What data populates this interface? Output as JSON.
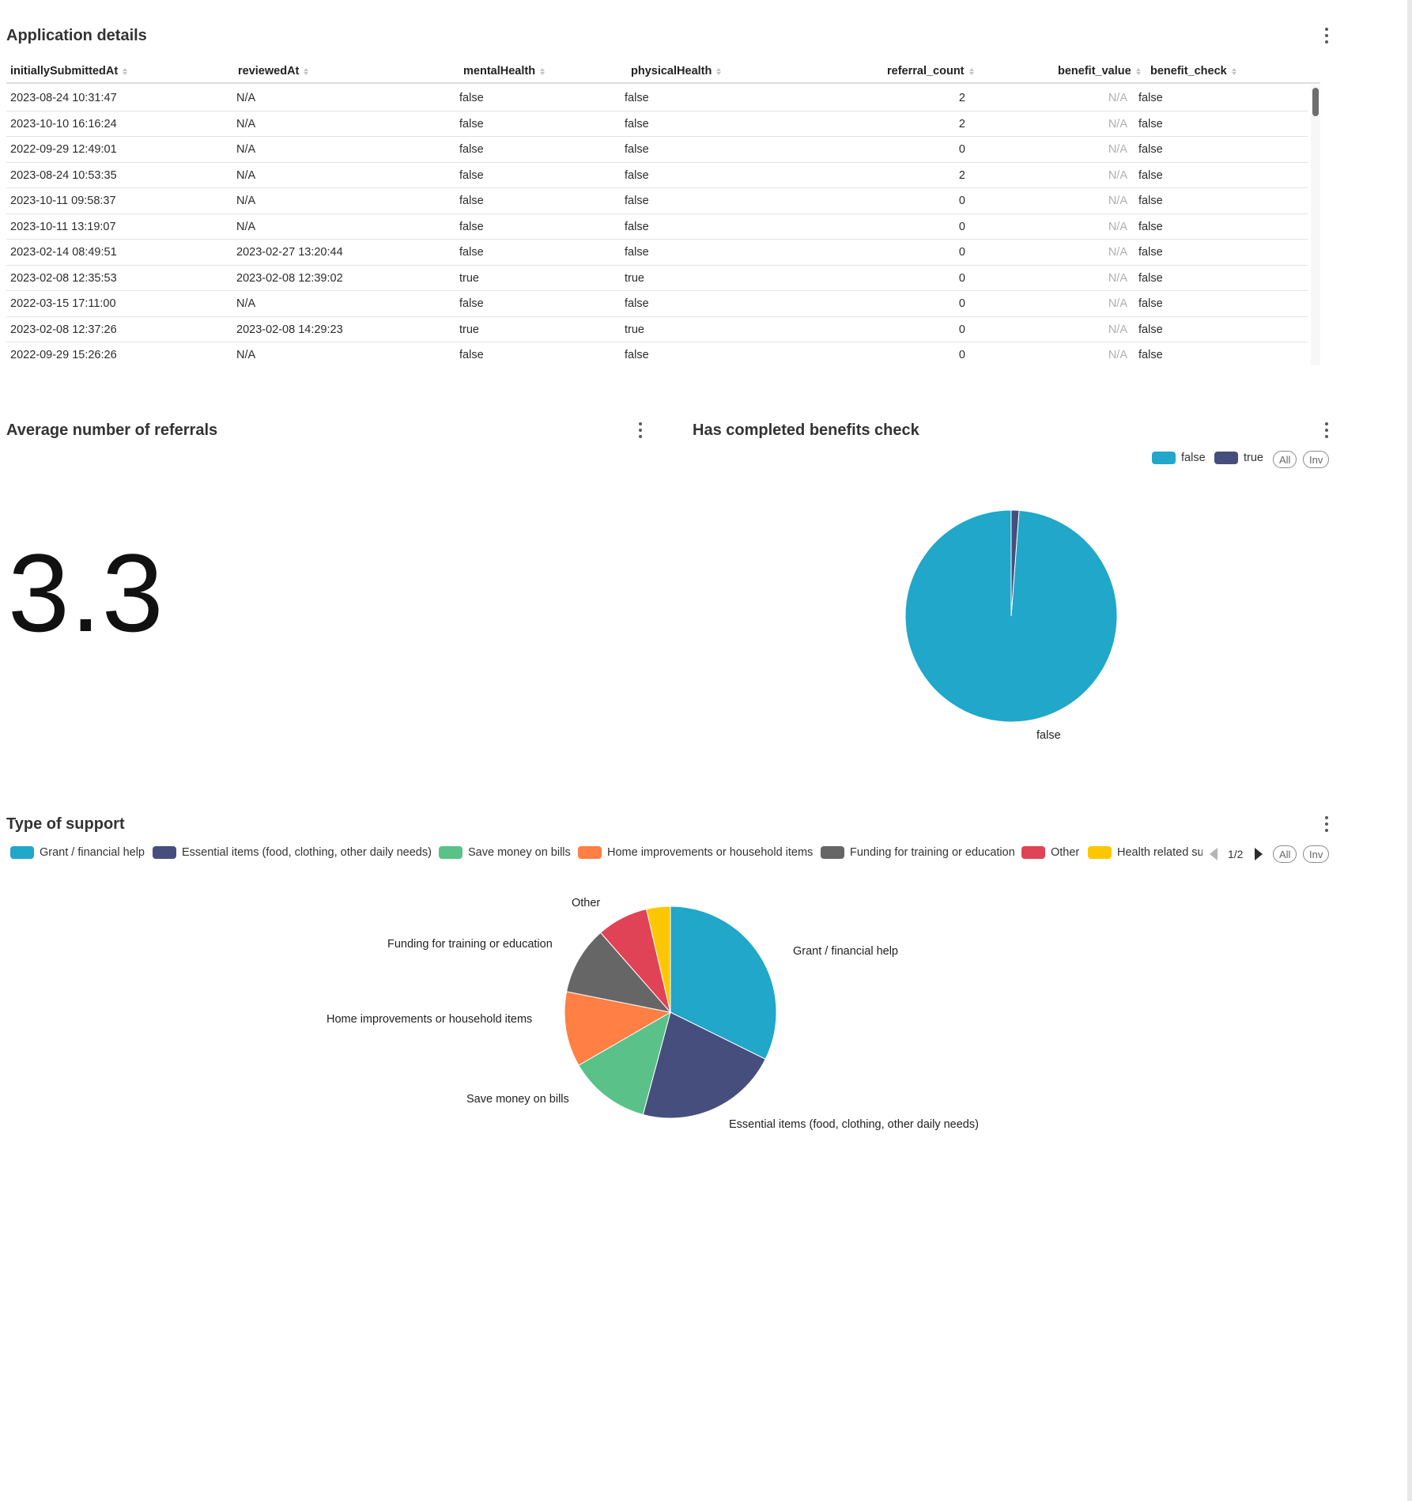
{
  "app_details": {
    "title": "Application details",
    "columns": [
      "initiallySubmittedAt",
      "reviewedAt",
      "mentalHealth",
      "physicalHealth",
      "referral_count",
      "benefit_value",
      "benefit_check"
    ],
    "rows": [
      [
        "2023-08-24 10:31:47",
        "N/A",
        "false",
        "false",
        "2",
        "N/A",
        "false"
      ],
      [
        "2023-10-10 16:16:24",
        "N/A",
        "false",
        "false",
        "2",
        "N/A",
        "false"
      ],
      [
        "2022-09-29 12:49:01",
        "N/A",
        "false",
        "false",
        "0",
        "N/A",
        "false"
      ],
      [
        "2023-08-24 10:53:35",
        "N/A",
        "false",
        "false",
        "2",
        "N/A",
        "false"
      ],
      [
        "2023-10-11 09:58:37",
        "N/A",
        "false",
        "false",
        "0",
        "N/A",
        "false"
      ],
      [
        "2023-10-11 13:19:07",
        "N/A",
        "false",
        "false",
        "0",
        "N/A",
        "false"
      ],
      [
        "2023-02-14 08:49:51",
        "2023-02-27 13:20:44",
        "false",
        "false",
        "0",
        "N/A",
        "false"
      ],
      [
        "2023-02-08 12:35:53",
        "2023-02-08 12:39:02",
        "true",
        "true",
        "0",
        "N/A",
        "false"
      ],
      [
        "2022-03-15 17:11:00",
        "N/A",
        "false",
        "false",
        "0",
        "N/A",
        "false"
      ],
      [
        "2023-02-08 12:37:26",
        "2023-02-08 14:29:23",
        "true",
        "true",
        "0",
        "N/A",
        "false"
      ],
      [
        "2022-09-29 15:26:26",
        "N/A",
        "false",
        "false",
        "0",
        "N/A",
        "false"
      ]
    ]
  },
  "avg_referrals": {
    "title": "Average number of referrals",
    "value": "3.3"
  },
  "benefits_check": {
    "title": "Has completed benefits check",
    "legend_all": "All",
    "legend_inv": "Inv",
    "slice_label": "false"
  },
  "type_support": {
    "title": "Type of support",
    "legend_truncated_last": "Health related su",
    "pager": "1/2",
    "legend_all": "All",
    "legend_inv": "Inv"
  },
  "chart_data": [
    {
      "type": "pie",
      "title": "Has completed benefits check",
      "legend_position": "top-right",
      "slices": [
        {
          "name": "false",
          "value": 98.8,
          "color": "#20A7C9"
        },
        {
          "name": "true",
          "value": 1.2,
          "color": "#454E7C"
        }
      ]
    },
    {
      "type": "pie",
      "title": "Type of support",
      "legend_position": "top",
      "slices": [
        {
          "name": "Grant / financial help",
          "value": 31,
          "color": "#20A7C9"
        },
        {
          "name": "Essential items (food, clothing, other daily needs)",
          "value": 21,
          "color": "#454E7C"
        },
        {
          "name": "Save money on bills",
          "value": 12,
          "color": "#5AC189"
        },
        {
          "name": "Home improvements or household items",
          "value": 11,
          "color": "#FF7F44"
        },
        {
          "name": "Funding for training or education",
          "value": 10,
          "color": "#666666"
        },
        {
          "name": "Other",
          "value": 7.5,
          "color": "#E04355"
        },
        {
          "name": "Health related support",
          "value": 3.5,
          "color": "#FCC700"
        }
      ]
    }
  ]
}
